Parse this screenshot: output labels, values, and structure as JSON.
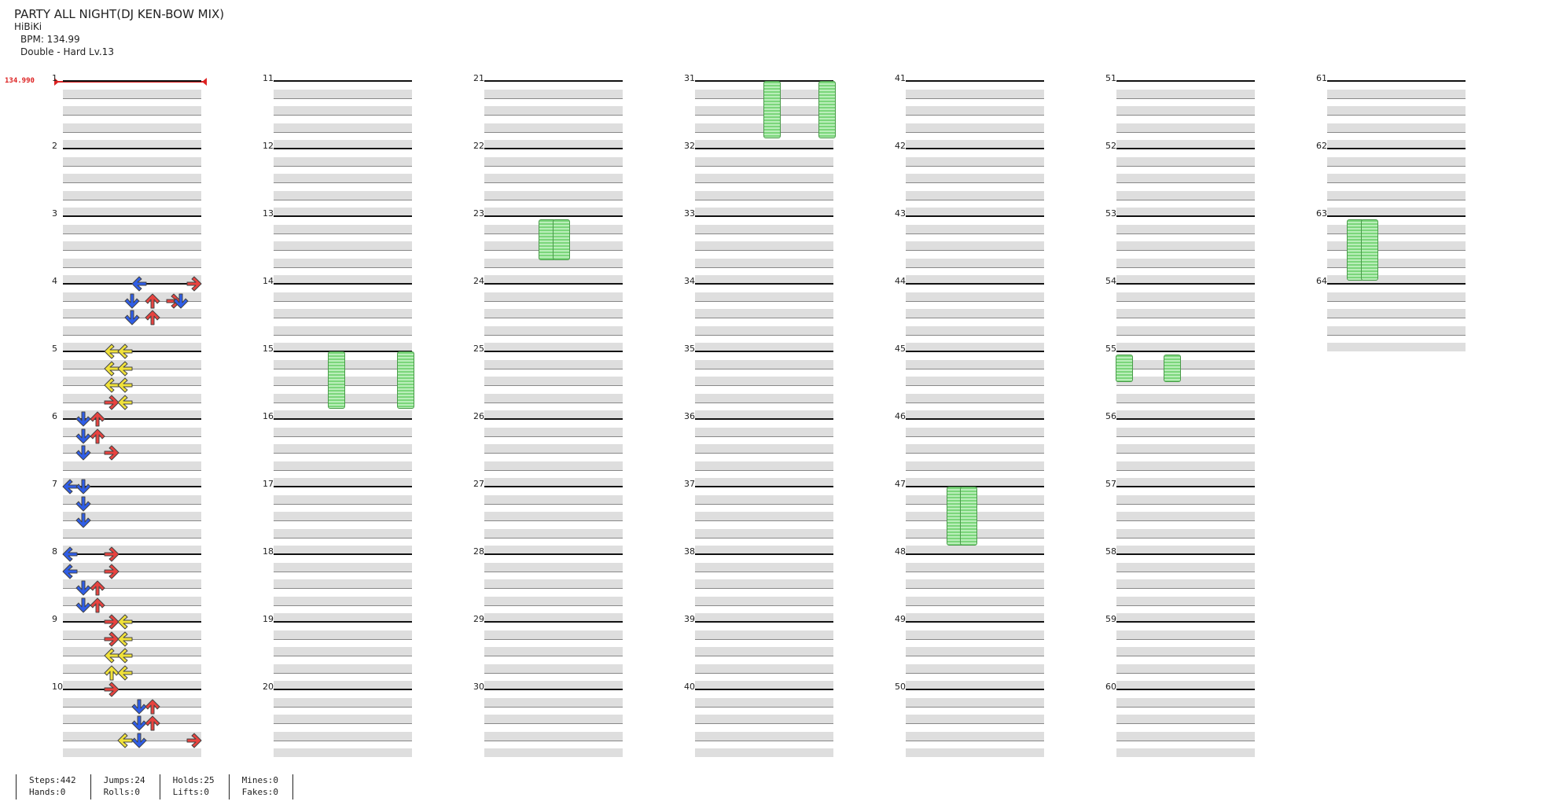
{
  "header": {
    "title": "PARTY ALL NIGHT(DJ KEN-BOW MIX)",
    "artist": "HiBiKi",
    "bpm": "BPM: 134.99",
    "difficulty": "Double - Hard  Lv.13"
  },
  "bpm_marker": "134.990",
  "measure_numbers": [
    "1",
    "2",
    "3",
    "4",
    "5",
    "6",
    "7",
    "8",
    "9",
    "10",
    "11",
    "12",
    "13",
    "14",
    "15",
    "16",
    "17",
    "18",
    "19",
    "20",
    "21",
    "22",
    "23",
    "24",
    "25",
    "26",
    "27",
    "28",
    "29",
    "30",
    "31",
    "32",
    "33",
    "34",
    "35",
    "36",
    "37",
    "38",
    "39",
    "40",
    "41",
    "42",
    "43",
    "44",
    "45",
    "46",
    "47",
    "48",
    "49",
    "50",
    "51",
    "52",
    "53",
    "54",
    "55",
    "56",
    "57",
    "58",
    "59",
    "60",
    "61",
    "62",
    "63",
    "64"
  ],
  "stats": {
    "steps": "Steps:442",
    "hands": "Hands:0",
    "jumps": "Jumps:24",
    "rolls": "Rolls:0",
    "holds": "Holds:25",
    "lifts": "Lifts:0",
    "mines": "Mines:0",
    "fakes": "Fakes:0"
  },
  "colors": {
    "red": "#e8433f",
    "blue": "#2f5ee8",
    "yellow": "#f1e23a",
    "hold": "#7bd67b",
    "lane": "#dedede"
  },
  "notes": [
    [
      "4",
      "R",
      0,
      0.95
    ],
    [
      "4",
      "L",
      0,
      0.55
    ],
    [
      "4",
      "D",
      1,
      0.5
    ],
    [
      "4",
      "U",
      1,
      0.65
    ],
    [
      "4",
      "R",
      1,
      0.8
    ],
    [
      "4",
      "D",
      1,
      0.85
    ],
    [
      "4",
      "U",
      2,
      0.65
    ],
    [
      "4",
      "D",
      2,
      0.5
    ],
    [
      "5",
      "L",
      0,
      0.35
    ],
    [
      "5",
      "L",
      0,
      0.45
    ],
    [
      "5",
      "L",
      1,
      0.35
    ],
    [
      "5",
      "L",
      1,
      0.45
    ],
    [
      "5",
      "L",
      2,
      0.35
    ],
    [
      "5",
      "L",
      2,
      0.45
    ],
    [
      "5",
      "R",
      3,
      0.35
    ],
    [
      "5",
      "L",
      3,
      0.45
    ],
    [
      "6",
      "D",
      0,
      0.15
    ],
    [
      "6",
      "U",
      0,
      0.25
    ],
    [
      "6",
      "D",
      1,
      0.15
    ],
    [
      "6",
      "U",
      1,
      0.25
    ],
    [
      "6",
      "D",
      2,
      0.15
    ],
    [
      "6",
      "R",
      2,
      0.35
    ],
    [
      "7",
      "L",
      0,
      0.05
    ],
    [
      "7",
      "D",
      0,
      0.15
    ],
    [
      "7",
      "D",
      1,
      0.15
    ],
    [
      "7",
      "D",
      2,
      0.15
    ],
    [
      "8",
      "L",
      0,
      0.05
    ],
    [
      "8",
      "R",
      0,
      0.35
    ],
    [
      "8",
      "L",
      1,
      0.05
    ],
    [
      "8",
      "R",
      1,
      0.35
    ],
    [
      "8",
      "D",
      2,
      0.15
    ],
    [
      "8",
      "U",
      2,
      0.25
    ],
    [
      "8",
      "D",
      3,
      0.15
    ],
    [
      "8",
      "U",
      3,
      0.25
    ],
    [
      "9",
      "R",
      0,
      0.35
    ],
    [
      "9",
      "L",
      0,
      0.45
    ],
    [
      "9",
      "R",
      1,
      0.35
    ],
    [
      "9",
      "L",
      1,
      0.45
    ],
    [
      "9",
      "L",
      2,
      0.35
    ],
    [
      "9",
      "L",
      2,
      0.45
    ],
    [
      "9",
      "U",
      3,
      0.35
    ],
    [
      "9",
      "L",
      3,
      0.45
    ],
    [
      "10",
      "R",
      0,
      0.35
    ],
    [
      "10",
      "D",
      1,
      0.55
    ],
    [
      "10",
      "U",
      1,
      0.65
    ],
    [
      "10",
      "D",
      2,
      0.55
    ],
    [
      "10",
      "U",
      2,
      0.65
    ],
    [
      "10",
      "L",
      3,
      0.45
    ],
    [
      "10",
      "D",
      3,
      0.55
    ],
    [
      "10",
      "R",
      3,
      0.95
    ]
  ]
}
